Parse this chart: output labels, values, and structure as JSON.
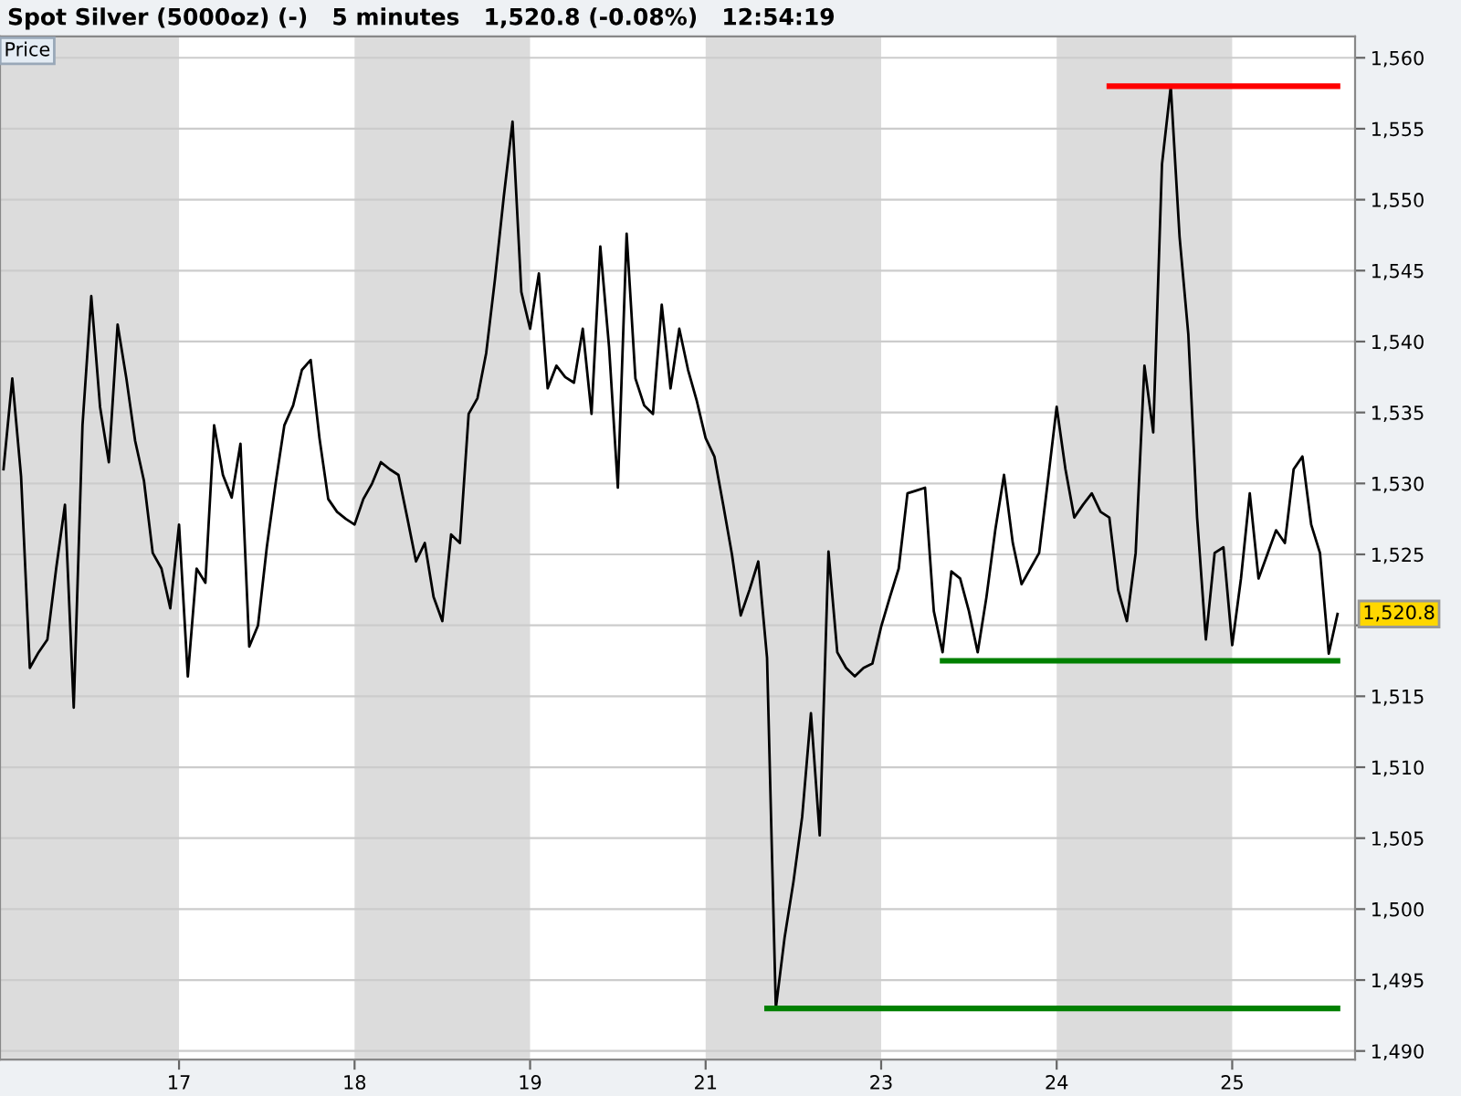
{
  "chart_data": {
    "type": "line",
    "title": "Spot Silver (5000oz) (-)   5 minutes   1,520.8 (-0.08%)   12:54:19",
    "annotations": [
      "Price",
      "1,520.8"
    ],
    "ylim": [
      1489.4,
      1561.5
    ],
    "yticks": [
      {
        "value": 1490,
        "label": "1,490"
      },
      {
        "value": 1495,
        "label": "1,495"
      },
      {
        "value": 1500,
        "label": "1,500"
      },
      {
        "value": 1505,
        "label": "1,505"
      },
      {
        "value": 1510,
        "label": "1,510"
      },
      {
        "value": 1515,
        "label": "1,515"
      },
      {
        "value": 1520,
        "label": null
      },
      {
        "value": 1525,
        "label": "1,525"
      },
      {
        "value": 1530,
        "label": "1,530"
      },
      {
        "value": 1535,
        "label": "1,535"
      },
      {
        "value": 1540,
        "label": "1,540"
      },
      {
        "value": 1545,
        "label": "1,545"
      },
      {
        "value": 1550,
        "label": "1,550"
      },
      {
        "value": 1555,
        "label": "1,555"
      },
      {
        "value": 1560,
        "label": "1,560"
      }
    ],
    "grid": "y",
    "legend": false,
    "marker": "none",
    "line_style": "solid",
    "categories": [
      null,
      null,
      null,
      null,
      null,
      null,
      null,
      null,
      null,
      null,
      null,
      null,
      null,
      null,
      null,
      null,
      null,
      null,
      null,
      null,
      "17",
      null,
      null,
      null,
      null,
      null,
      null,
      null,
      null,
      null,
      null,
      null,
      null,
      null,
      null,
      null,
      null,
      null,
      null,
      null,
      "18",
      null,
      null,
      null,
      null,
      null,
      null,
      null,
      null,
      null,
      null,
      null,
      null,
      null,
      null,
      null,
      null,
      null,
      null,
      null,
      "19",
      null,
      null,
      null,
      null,
      null,
      null,
      null,
      null,
      null,
      null,
      null,
      null,
      null,
      null,
      null,
      null,
      null,
      null,
      null,
      "21",
      null,
      null,
      null,
      null,
      null,
      null,
      null,
      null,
      null,
      null,
      null,
      null,
      null,
      null,
      null,
      null,
      null,
      null,
      null,
      "23",
      null,
      null,
      null,
      null,
      null,
      null,
      null,
      null,
      null,
      null,
      null,
      null,
      null,
      null,
      null,
      null,
      null,
      null,
      null,
      "24",
      null,
      null,
      null,
      null,
      null,
      null,
      null,
      null,
      null,
      null,
      null,
      null,
      null,
      null,
      null,
      null,
      null,
      null,
      null,
      "25",
      null,
      null,
      null,
      null,
      null,
      null,
      null,
      null,
      null,
      null,
      null,
      null
    ],
    "bands": [
      {
        "axis": "x",
        "from": "18",
        "to": "19",
        "color": "#dcdcdc"
      },
      {
        "axis": "x",
        "from": "21",
        "to": "23",
        "color": "#dcdcdc"
      },
      {
        "axis": "x",
        "from": "24",
        "to": "25",
        "color": "#dcdcdc"
      }
    ],
    "series": [
      {
        "color": "#000000",
        "values": [
          1531.0,
          1537.4,
          1530.5,
          1517.0,
          1518.1,
          1519.0,
          1524.0,
          1528.5,
          1514.2,
          1534.1,
          1543.2,
          1535.4,
          1531.5,
          1541.2,
          1537.4,
          1533.0,
          1530.2,
          1525.1,
          1524.0,
          1521.2,
          1527.1,
          1516.4,
          1524.0,
          1523.0,
          1534.1,
          1530.6,
          1529.0,
          1532.8,
          1518.5,
          1520.0,
          1525.5,
          1530.0,
          1534.1,
          1535.5,
          1538.0,
          1538.7,
          1533.2,
          1528.9,
          1528.0,
          1527.5,
          1527.1,
          1528.9,
          1530.0,
          1531.5,
          1531.0,
          1530.6,
          1527.6,
          1524.5,
          1525.8,
          1522.0,
          1520.3,
          1526.4,
          1525.8,
          1534.9,
          1536.0,
          1539.2,
          1544.4,
          1550.2,
          1555.5,
          1543.5,
          1540.9,
          1544.8,
          1536.7,
          1538.3,
          1537.5,
          1537.1,
          1540.9,
          1534.9,
          1546.7,
          1539.6,
          1529.7,
          1547.6,
          1537.4,
          1535.5,
          1534.9,
          1542.6,
          1536.7,
          1540.9,
          1538.0,
          1535.8,
          1533.2,
          1531.9,
          1528.5,
          1525.0,
          1520.7,
          1522.5,
          1524.5,
          1517.7,
          1493.0,
          1498.0,
          1501.9,
          1506.5,
          1513.8,
          1505.2,
          1525.2,
          1518.1,
          1517.0,
          1516.4,
          1517.0,
          1517.3,
          1519.9,
          1522.0,
          1524.0,
          1529.3,
          1529.5,
          1529.7,
          1521.0,
          1518.1,
          1523.8,
          1523.3,
          1521.0,
          1518.1,
          1522.0,
          1526.7,
          1530.6,
          1525.8,
          1522.9,
          1524.0,
          1525.1,
          1530.2,
          1535.4,
          1531.0,
          1527.6,
          1528.5,
          1529.3,
          1528.0,
          1527.6,
          1522.5,
          1520.3,
          1525.1,
          1538.3,
          1533.6,
          1552.5,
          1558.0,
          1547.4,
          1540.5,
          1527.6,
          1519.0,
          1525.1,
          1525.5,
          1518.6,
          1523.3,
          1529.3,
          1523.3,
          1525.0,
          1526.7,
          1525.8,
          1531.0,
          1531.9,
          1527.1,
          1525.1,
          1518.0,
          1520.8
        ]
      },
      {
        "color": "#ff0000",
        "values": [
          null,
          null,
          null,
          null,
          null,
          null,
          null,
          null,
          null,
          null,
          null,
          null,
          null,
          null,
          null,
          null,
          null,
          null,
          null,
          null,
          null,
          null,
          null,
          null,
          null,
          null,
          null,
          null,
          null,
          null,
          null,
          null,
          null,
          null,
          null,
          null,
          null,
          null,
          null,
          null,
          null,
          null,
          null,
          null,
          null,
          null,
          null,
          null,
          null,
          null,
          null,
          null,
          null,
          null,
          null,
          null,
          null,
          null,
          null,
          null,
          null,
          null,
          null,
          null,
          null,
          null,
          null,
          null,
          null,
          null,
          null,
          null,
          null,
          null,
          null,
          null,
          null,
          null,
          null,
          null,
          null,
          null,
          null,
          null,
          null,
          null,
          null,
          null,
          null,
          null,
          null,
          null,
          null,
          null,
          null,
          null,
          null,
          null,
          null,
          null,
          null,
          null,
          null,
          null,
          null,
          null,
          null,
          null,
          null,
          null,
          null,
          null,
          null,
          null,
          null,
          null,
          null,
          null,
          null,
          null,
          null,
          null,
          null,
          null,
          null,
          null,
          1558.0,
          1558.0,
          1558.0,
          1558.0,
          1558.0,
          1558.0,
          1558.0,
          1558.0,
          1558.0,
          1558.0,
          1558.0,
          1558.0,
          1558.0,
          1558.0,
          1558.0,
          1558.0,
          1558.0,
          1558.0,
          1558.0,
          1558.0,
          1558.0,
          1558.0,
          1558.0,
          1558.0,
          1558.0,
          1558.0,
          1558.0
        ]
      },
      {
        "color": "#008000",
        "values": [
          null,
          null,
          null,
          null,
          null,
          null,
          null,
          null,
          null,
          null,
          null,
          null,
          null,
          null,
          null,
          null,
          null,
          null,
          null,
          null,
          null,
          null,
          null,
          null,
          null,
          null,
          null,
          null,
          null,
          null,
          null,
          null,
          null,
          null,
          null,
          null,
          null,
          null,
          null,
          null,
          null,
          null,
          null,
          null,
          null,
          null,
          null,
          null,
          null,
          null,
          null,
          null,
          null,
          null,
          null,
          null,
          null,
          null,
          null,
          null,
          null,
          null,
          null,
          null,
          null,
          null,
          null,
          null,
          null,
          null,
          null,
          null,
          null,
          null,
          null,
          null,
          null,
          null,
          null,
          null,
          null,
          null,
          null,
          null,
          null,
          null,
          null,
          null,
          null,
          null,
          null,
          null,
          null,
          null,
          null,
          null,
          null,
          null,
          null,
          null,
          null,
          null,
          null,
          null,
          null,
          null,
          null,
          1517.5,
          1517.5,
          1517.5,
          1517.5,
          1517.5,
          1517.5,
          1517.5,
          1517.5,
          1517.5,
          1517.5,
          1517.5,
          1517.5,
          1517.5,
          1517.5,
          1517.5,
          1517.5,
          1517.5,
          1517.5,
          1517.5,
          1517.5,
          1517.5,
          1517.5,
          1517.5,
          1517.5,
          1517.5,
          1517.5,
          1517.5,
          1517.5,
          1517.5,
          1517.5,
          1517.5,
          1517.5,
          1517.5,
          1517.5,
          1517.5,
          1517.5,
          1517.5,
          1517.5,
          1517.5,
          1517.5,
          1517.5,
          1517.5,
          1517.5,
          1517.5,
          1517.5,
          1517.5
        ]
      },
      {
        "color": "#008000",
        "values": [
          null,
          null,
          null,
          null,
          null,
          null,
          null,
          null,
          null,
          null,
          null,
          null,
          null,
          null,
          null,
          null,
          null,
          null,
          null,
          null,
          null,
          null,
          null,
          null,
          null,
          null,
          null,
          null,
          null,
          null,
          null,
          null,
          null,
          null,
          null,
          null,
          null,
          null,
          null,
          null,
          null,
          null,
          null,
          null,
          null,
          null,
          null,
          null,
          null,
          null,
          null,
          null,
          null,
          null,
          null,
          null,
          null,
          null,
          null,
          null,
          null,
          null,
          null,
          null,
          null,
          null,
          null,
          null,
          null,
          null,
          null,
          null,
          null,
          null,
          null,
          null,
          null,
          null,
          null,
          null,
          null,
          null,
          null,
          null,
          null,
          null,
          null,
          1493.0,
          1493.0,
          1493.0,
          1493.0,
          1493.0,
          1493.0,
          1493.0,
          1493.0,
          1493.0,
          1493.0,
          1493.0,
          1493.0,
          1493.0,
          1493.0,
          1493.0,
          1493.0,
          1493.0,
          1493.0,
          1493.0,
          1493.0,
          1493.0,
          1493.0,
          1493.0,
          1493.0,
          1493.0,
          1493.0,
          1493.0,
          1493.0,
          1493.0,
          1493.0,
          1493.0,
          1493.0,
          1493.0,
          1493.0,
          1493.0,
          1493.0,
          1493.0,
          1493.0,
          1493.0,
          1493.0,
          1493.0,
          1493.0,
          1493.0,
          1493.0,
          1493.0,
          1493.0,
          1493.0,
          1493.0,
          1493.0,
          1493.0,
          1493.0,
          1493.0,
          1493.0,
          1493.0,
          1493.0,
          1493.0,
          1493.0,
          1493.0,
          1493.0,
          1493.0,
          1493.0,
          1493.0,
          1493.0,
          1493.0,
          1493.0,
          1493.0
        ]
      }
    ]
  }
}
